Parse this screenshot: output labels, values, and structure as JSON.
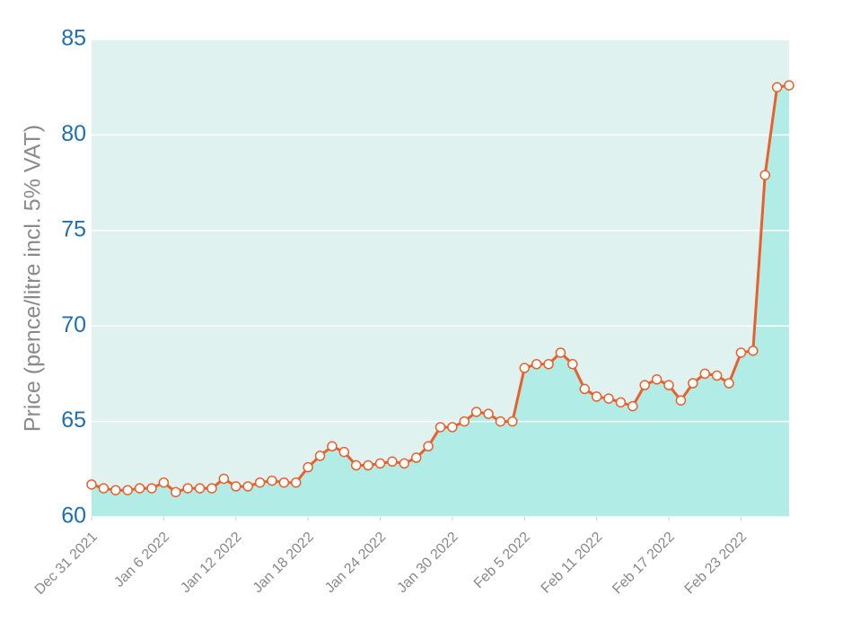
{
  "chart_data": {
    "type": "line",
    "y_label": "Price (pence/litre incl. 5% VAT)",
    "x": [
      "2021-12-31",
      "2022-01-01",
      "2022-01-02",
      "2022-01-03",
      "2022-01-04",
      "2022-01-05",
      "2022-01-06",
      "2022-01-07",
      "2022-01-08",
      "2022-01-09",
      "2022-01-10",
      "2022-01-11",
      "2022-01-12",
      "2022-01-13",
      "2022-01-14",
      "2022-01-15",
      "2022-01-16",
      "2022-01-17",
      "2022-01-18",
      "2022-01-19",
      "2022-01-20",
      "2022-01-21",
      "2022-01-22",
      "2022-01-23",
      "2022-01-24",
      "2022-01-25",
      "2022-01-26",
      "2022-01-27",
      "2022-01-28",
      "2022-01-29",
      "2022-01-30",
      "2022-01-31",
      "2022-02-01",
      "2022-02-02",
      "2022-02-03",
      "2022-02-04",
      "2022-02-05",
      "2022-02-06",
      "2022-02-07",
      "2022-02-08",
      "2022-02-09",
      "2022-02-10",
      "2022-02-11",
      "2022-02-12",
      "2022-02-13",
      "2022-02-14",
      "2022-02-15",
      "2022-02-16",
      "2022-02-17",
      "2022-02-18",
      "2022-02-19",
      "2022-02-20",
      "2022-02-21",
      "2022-02-22",
      "2022-02-23",
      "2022-02-24",
      "2022-02-25",
      "2022-02-26",
      "2022-02-27"
    ],
    "series": [
      {
        "color": "#e8612c",
        "area_color": "#b2ece6",
        "values": [
          61.7,
          61.5,
          61.4,
          61.4,
          61.5,
          61.5,
          61.8,
          61.3,
          61.5,
          61.5,
          61.5,
          62.0,
          61.6,
          61.6,
          61.8,
          61.9,
          61.8,
          61.8,
          62.6,
          63.2,
          63.7,
          63.4,
          62.7,
          62.7,
          62.8,
          62.9,
          62.8,
          63.1,
          63.7,
          64.7,
          64.7,
          65.0,
          65.5,
          65.4,
          65.0,
          65.0,
          67.8,
          68.0,
          68.0,
          68.6,
          68.0,
          66.7,
          66.3,
          66.2,
          66.0,
          65.8,
          66.9,
          67.2,
          66.9,
          66.1,
          67.0,
          67.5,
          67.4,
          67.0,
          68.6,
          68.7,
          77.9,
          82.5,
          82.6
        ]
      }
    ],
    "xlim": [
      "2021-12-31",
      "2022-02-27"
    ],
    "xticks": [
      {
        "value": "2021-12-31",
        "label": "Dec 31 2021"
      },
      {
        "value": "2022-01-06",
        "label": "Jan 6 2022"
      },
      {
        "value": "2022-01-12",
        "label": "Jan 12 2022"
      },
      {
        "value": "2022-01-18",
        "label": "Jan 18 2022"
      },
      {
        "value": "2022-01-24",
        "label": "Jan 24 2022"
      },
      {
        "value": "2022-01-30",
        "label": "Jan 30 2022"
      },
      {
        "value": "2022-02-05",
        "label": "Feb 5 2022"
      },
      {
        "value": "2022-02-11",
        "label": "Feb 11 2022"
      },
      {
        "value": "2022-02-17",
        "label": "Feb 17 2022"
      },
      {
        "value": "2022-02-23",
        "label": "Feb 23 2022"
      }
    ],
    "ylim": [
      60,
      85
    ],
    "yticks": [
      60,
      65,
      70,
      75,
      80,
      85
    ],
    "grid": true,
    "plot_background": "#dff2f0"
  }
}
